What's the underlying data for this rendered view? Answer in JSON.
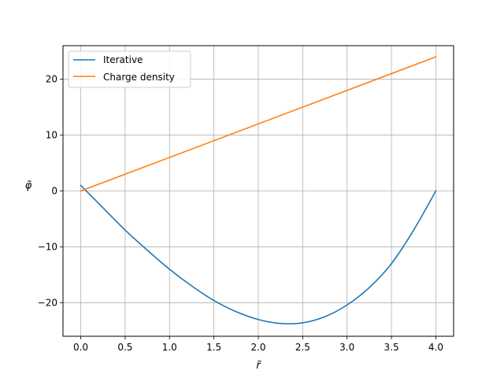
{
  "chart_data": {
    "type": "line",
    "xlabel": "r̃",
    "ylabel": "φ̃",
    "xlim": [
      -0.2,
      4.2
    ],
    "ylim": [
      -26,
      26
    ],
    "x_ticks": [
      0.0,
      0.5,
      1.0,
      1.5,
      2.0,
      2.5,
      3.0,
      3.5,
      4.0
    ],
    "x_tick_labels": [
      "0.0",
      "0.5",
      "1.0",
      "1.5",
      "2.0",
      "2.5",
      "3.0",
      "3.5",
      "4.0"
    ],
    "y_ticks": [
      -20,
      -10,
      0,
      10,
      20
    ],
    "y_tick_labels": [
      "−20",
      "−10",
      "0",
      "10",
      "20"
    ],
    "grid": true,
    "legend_position": "top-left",
    "series": [
      {
        "name": "Iterative",
        "color": "#1f77b4",
        "x": [
          0.0,
          0.25,
          0.5,
          0.75,
          1.0,
          1.25,
          1.5,
          1.75,
          2.0,
          2.25,
          2.5,
          2.75,
          3.0,
          3.25,
          3.5,
          3.75,
          4.0
        ],
        "y": [
          1.0,
          -3.0,
          -7.0,
          -10.6,
          -14.0,
          -17.0,
          -19.6,
          -21.6,
          -23.0,
          -23.7,
          -23.6,
          -22.5,
          -20.4,
          -17.3,
          -13.0,
          -7.0,
          0.0
        ]
      },
      {
        "name": "Charge density",
        "color": "#ff7f0e",
        "x": [
          0.0,
          4.0
        ],
        "y": [
          0.0,
          24.0
        ]
      }
    ]
  }
}
